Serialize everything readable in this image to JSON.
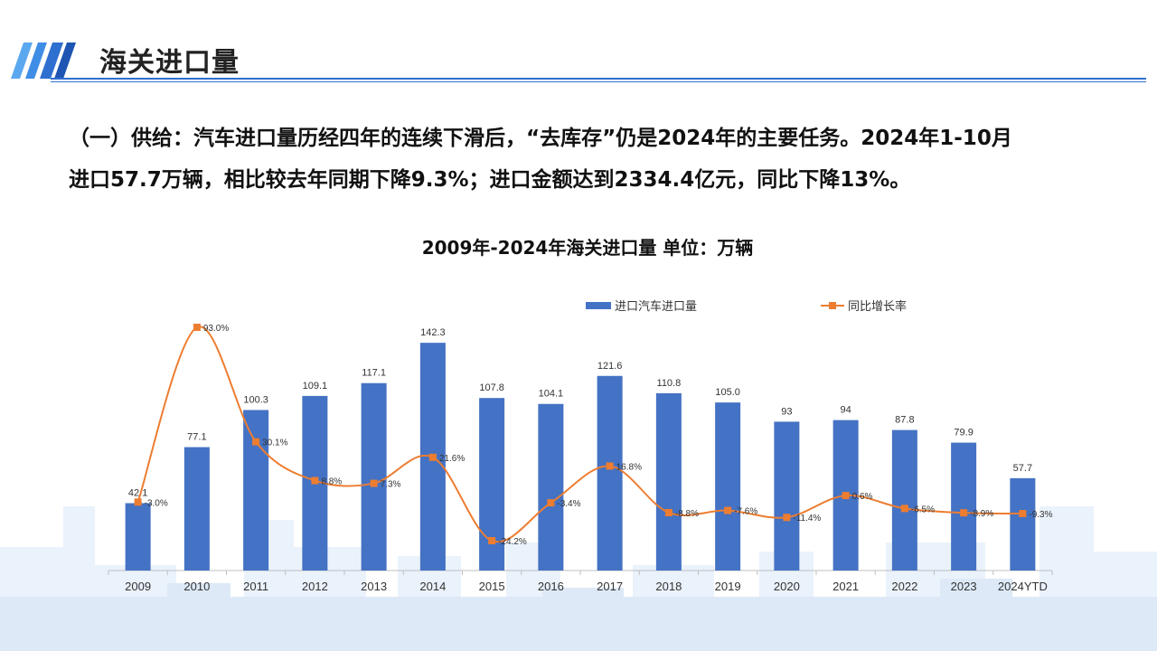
{
  "header": {
    "title": "海关进口量"
  },
  "summary": {
    "line1": "（一）供给：汽车进口量历经四年的连续下滑后，“去库存”仍是2024年的主要任务。2024年1-10月",
    "line2": "进口57.7万辆，相比较去年同期下降9.3%；进口金额达到2334.4亿元，同比下降13%。"
  },
  "colors": {
    "bar": "#4472c4",
    "line": "#ed7d31",
    "header_accent": "#2f6fcf"
  },
  "chart_data": {
    "type": "bar",
    "title": "2009年-2024年海关进口量  单位：万辆",
    "categories": [
      "2009",
      "2010",
      "2011",
      "2012",
      "2013",
      "2014",
      "2015",
      "2016",
      "2017",
      "2018",
      "2019",
      "2020",
      "2021",
      "2022",
      "2023",
      "2024YTD"
    ],
    "series": [
      {
        "name": "进口汽车进口量",
        "type": "bar",
        "values": [
          42.1,
          77.1,
          100.3,
          109.1,
          117.1,
          142.3,
          107.8,
          104.1,
          121.6,
          110.8,
          105.0,
          93,
          94,
          87.8,
          79.9,
          57.7
        ],
        "labels": [
          "42.1",
          "77.1",
          "100.3",
          "109.1",
          "117.1",
          "142.3",
          "107.8",
          "104.1",
          "121.6",
          "110.8",
          "105.0",
          "93",
          "94",
          "87.8",
          "79.9",
          "57.7"
        ]
      },
      {
        "name": "同比增长率",
        "type": "line",
        "values": [
          -3.0,
          93.0,
          30.1,
          8.8,
          7.3,
          21.6,
          -24.2,
          -3.4,
          16.8,
          -8.8,
          -7.6,
          -11.4,
          0.6,
          -6.5,
          -8.9,
          -9.3
        ],
        "labels": [
          "-3.0%",
          "93.0%",
          "30.1%",
          "8.8%",
          "7.3%",
          "21.6%",
          "-24.2%",
          "-3.4%",
          "16.8%",
          "-8.8%",
          "-7.6%",
          "-11.4%",
          "0.6%",
          "-6.5%",
          "-8.9%",
          "-9.3%"
        ]
      }
    ],
    "legend_position": "top",
    "grid": false
  }
}
